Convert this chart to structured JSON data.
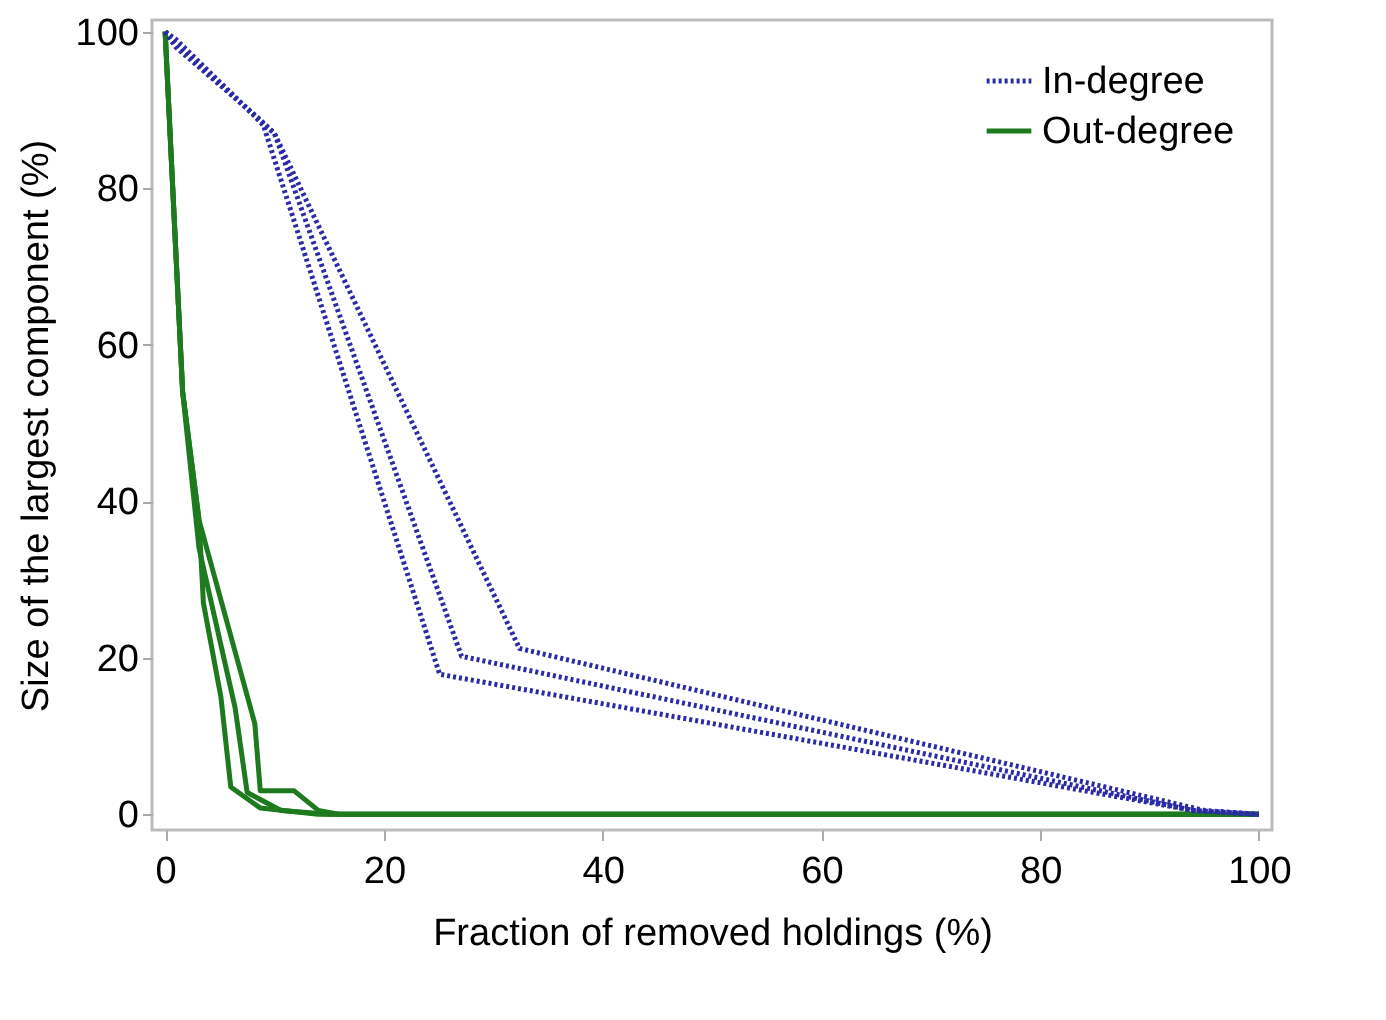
{
  "chart_data": {
    "type": "line",
    "xlabel": "Fraction of removed holdings (%)",
    "ylabel": "Size of the largest component (%)",
    "xlim": [
      -1.2,
      101.2
    ],
    "ylim": [
      -2,
      101.5
    ],
    "xticks": [
      0,
      20,
      40,
      60,
      80,
      100
    ],
    "yticks": [
      0,
      20,
      40,
      60,
      80,
      100
    ],
    "grid": false,
    "legend": "top right",
    "marker": "none",
    "series": [
      {
        "name": "In-degree",
        "color": "#2b2ba6",
        "line_style": "dotted",
        "x": [
          0,
          1,
          8,
          9,
          25.1,
          94,
          100
        ],
        "values": [
          100,
          99,
          89.5,
          88,
          17.9,
          0.5,
          0
        ]
      },
      {
        "color": "#2b2ba6",
        "line_style": "dotted",
        "x": [
          0,
          1,
          8,
          10,
          27.1,
          94,
          100
        ],
        "values": [
          100,
          98.5,
          89.5,
          87,
          20.2,
          0.5,
          0
        ]
      },
      {
        "color": "#2b2ba6",
        "line_style": "dotted",
        "x": [
          0,
          1,
          8.5,
          10,
          32.4,
          95,
          100
        ],
        "values": [
          100,
          98,
          89,
          87,
          21.2,
          0.5,
          0
        ]
      },
      {
        "name": "Out-degree",
        "color": "#1e7a1e",
        "line_style": "solid",
        "x": [
          0,
          1.6,
          3.1,
          3.5,
          5.1,
          6,
          8.7,
          14,
          100
        ],
        "values": [
          100,
          54,
          37.6,
          27,
          15,
          3.5,
          0.8,
          0,
          0
        ]
      },
      {
        "color": "#1e7a1e",
        "line_style": "solid",
        "x": [
          0,
          1.6,
          3.1,
          6.4,
          7.5,
          10.6,
          15,
          100
        ],
        "values": [
          100,
          54,
          34,
          13.6,
          2.8,
          0.5,
          0,
          0
        ]
      },
      {
        "color": "#1e7a1e",
        "line_style": "solid",
        "x": [
          0,
          1.6,
          3.1,
          8.2,
          8.7,
          11.8,
          14,
          16,
          100
        ],
        "values": [
          100,
          54,
          37.6,
          11.6,
          3,
          3,
          0.5,
          0,
          0
        ]
      }
    ]
  }
}
